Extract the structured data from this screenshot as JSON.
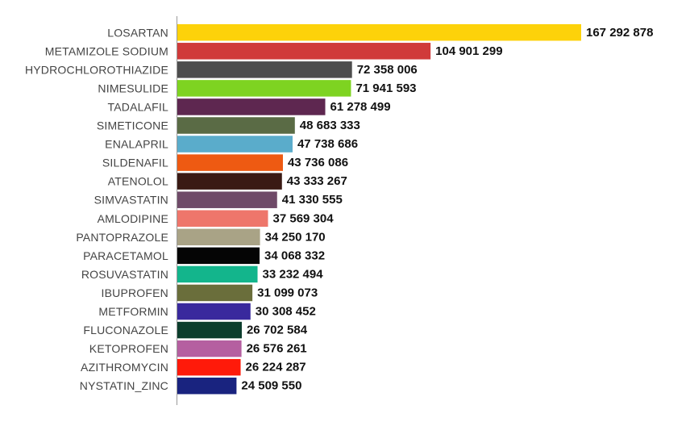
{
  "chart_data": {
    "type": "bar",
    "orientation": "horizontal",
    "title": "",
    "xlabel": "",
    "ylabel": "",
    "xlim": [
      0,
      167292878
    ],
    "grid": false,
    "legend": "none",
    "bars": [
      {
        "category": "LOSARTAN",
        "value": 167292878,
        "label": "167 292 878",
        "color": "#FDD20A"
      },
      {
        "category": "METAMIZOLE SODIUM",
        "value": 104901299,
        "label": "104 901 299",
        "color": "#D03A3A"
      },
      {
        "category": "HYDROCHLOROTHIAZIDE",
        "value": 72358006,
        "label": "72 358 006",
        "color": "#4D4D4D"
      },
      {
        "category": "NIMESULIDE",
        "value": 71941593,
        "label": "71 941 593",
        "color": "#7ED321"
      },
      {
        "category": "TADALAFIL",
        "value": 61278499,
        "label": "61 278 499",
        "color": "#5E2750"
      },
      {
        "category": "SIMETICONE",
        "value": 48683333,
        "label": "48 683 333",
        "color": "#5A6B45"
      },
      {
        "category": "ENALAPRIL",
        "value": 47738686,
        "label": "47 738 686",
        "color": "#5AACCB"
      },
      {
        "category": "SILDENAFIL",
        "value": 43736086,
        "label": "43 736 086",
        "color": "#EE5A12"
      },
      {
        "category": "ATENOLOL",
        "value": 43333267,
        "label": "43 333 267",
        "color": "#3A1A14"
      },
      {
        "category": "SIMVASTATIN",
        "value": 41330555,
        "label": "41 330 555",
        "color": "#6F4A68"
      },
      {
        "category": "AMLODIPINE",
        "value": 37569304,
        "label": "37 569 304",
        "color": "#EE766B"
      },
      {
        "category": "PANTOPRAZOLE",
        "value": 34250170,
        "label": "34 250 170",
        "color": "#A9A386"
      },
      {
        "category": "PARACETAMOL",
        "value": 34068332,
        "label": "34 068 332",
        "color": "#050505"
      },
      {
        "category": "ROSUVASTATIN",
        "value": 33232494,
        "label": "33 232 494",
        "color": "#13B58C"
      },
      {
        "category": "IBUPROFEN",
        "value": 31099073,
        "label": "31 099 073",
        "color": "#6A6E3B"
      },
      {
        "category": "METFORMIN",
        "value": 30308452,
        "label": "30 308 452",
        "color": "#39299D"
      },
      {
        "category": "FLUCONAZOLE",
        "value": 26702584,
        "label": "26 702 584",
        "color": "#0B3D2C"
      },
      {
        "category": "KETOPROFEN",
        "value": 26576261,
        "label": "26 576 261",
        "color": "#B55FA0"
      },
      {
        "category": "AZITHROMYCIN",
        "value": 26224287,
        "label": "26 224 287",
        "color": "#FF1A0A"
      },
      {
        "category": "NYSTATIN_ZINC",
        "value": 24509550,
        "label": "24 509 550",
        "color": "#19237F"
      }
    ]
  }
}
